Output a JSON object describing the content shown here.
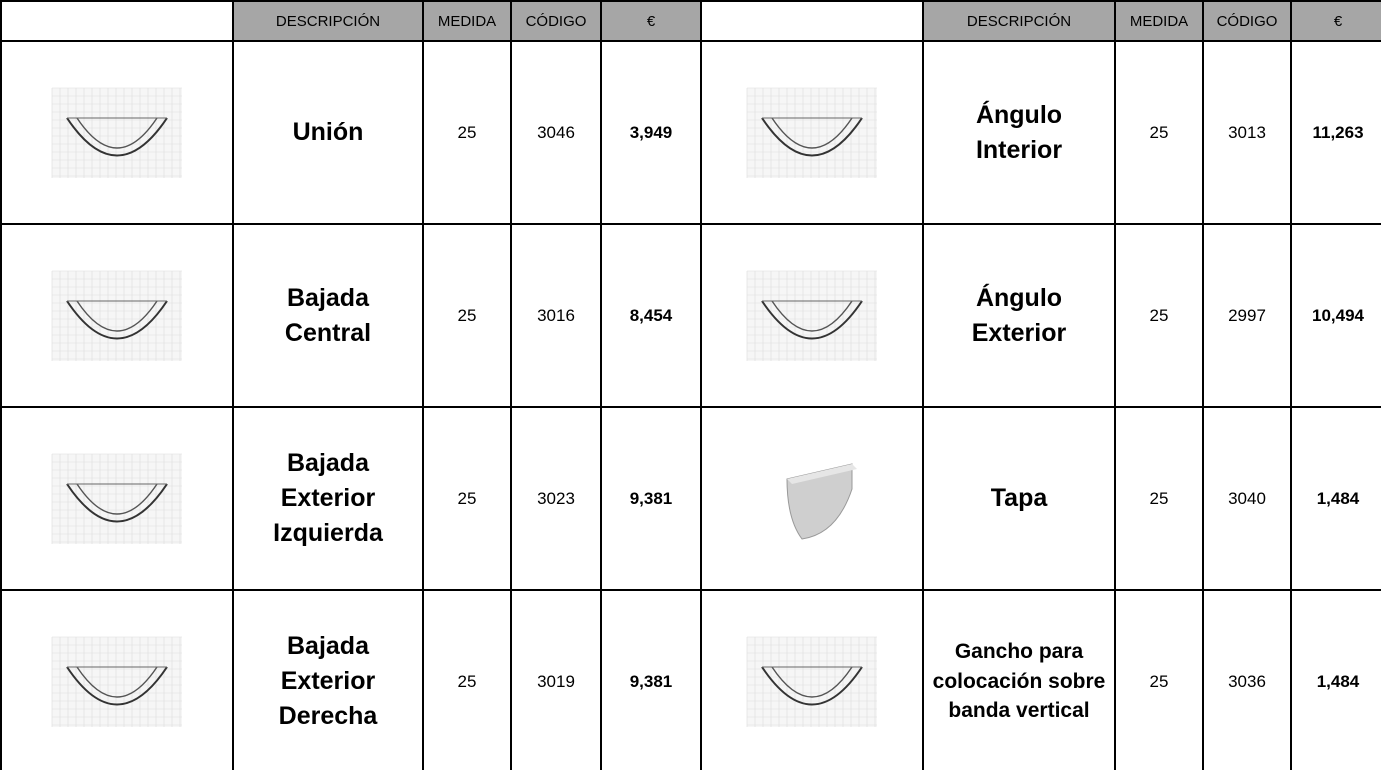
{
  "table": {
    "header": [
      "DESCRIPCIÓN",
      "MEDIDA",
      "CÓDIGO",
      "€"
    ],
    "rows": [
      {
        "left": [
          "Unión",
          "25",
          "3046",
          "3,949"
        ],
        "right": [
          "Ángulo Interior",
          "25",
          "3013",
          "11,263"
        ]
      },
      {
        "left": [
          "Bajada Central",
          "25",
          "3016",
          "8,454"
        ],
        "right": [
          "Ángulo Exterior",
          "25",
          "2997",
          "10,494"
        ]
      },
      {
        "left": [
          "Bajada Exterior Izquierda",
          "25",
          "3023",
          "9,381"
        ],
        "right": [
          "Tapa",
          "25",
          "3040",
          "1,484"
        ]
      },
      {
        "left": [
          "Bajada Exterior Derecha",
          "25",
          "3019",
          "9,381"
        ],
        "right": [
          "Gancho para colocación sobre banda vertical",
          "25",
          "3036",
          "1,484"
        ]
      }
    ]
  }
}
